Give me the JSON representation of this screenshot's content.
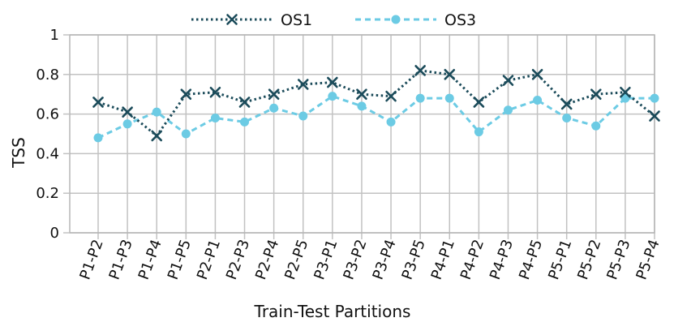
{
  "chart_data": {
    "type": "line",
    "xlabel": "Train-Test Partitions",
    "ylabel": "TSS",
    "ylim": [
      0,
      1
    ],
    "yticks": [
      "0",
      "0.2",
      "0.4",
      "0.6",
      "0.8",
      "1"
    ],
    "grid": true,
    "legend_position": "top",
    "categories": [
      "P1-P2",
      "P1-P3",
      "P1-P4",
      "P1-P5",
      "P2-P1",
      "P2-P3",
      "P2-P4",
      "P2-P5",
      "P3-P1",
      "P3-P2",
      "P3-P4",
      "P3-P5",
      "P4-P1",
      "P4-P2",
      "P4-P3",
      "P4-P5",
      "P5-P1",
      "P5-P2",
      "P5-P3",
      "P5-P4"
    ],
    "series": [
      {
        "name": "OS1",
        "color": "#1b4b5a",
        "line_style": "dotted",
        "marker": "x",
        "values": [
          0.66,
          0.61,
          0.49,
          0.7,
          0.71,
          0.66,
          0.7,
          0.75,
          0.76,
          0.7,
          0.69,
          0.82,
          0.8,
          0.66,
          0.77,
          0.8,
          0.65,
          0.7,
          0.71,
          0.59
        ]
      },
      {
        "name": "OS3",
        "color": "#6ccbe4",
        "line_style": "dashed",
        "marker": "circle",
        "values": [
          0.48,
          0.55,
          0.61,
          0.5,
          0.58,
          0.56,
          0.63,
          0.59,
          0.69,
          0.64,
          0.56,
          0.68,
          0.68,
          0.51,
          0.62,
          0.67,
          0.58,
          0.54,
          0.68,
          0.68
        ]
      }
    ]
  }
}
